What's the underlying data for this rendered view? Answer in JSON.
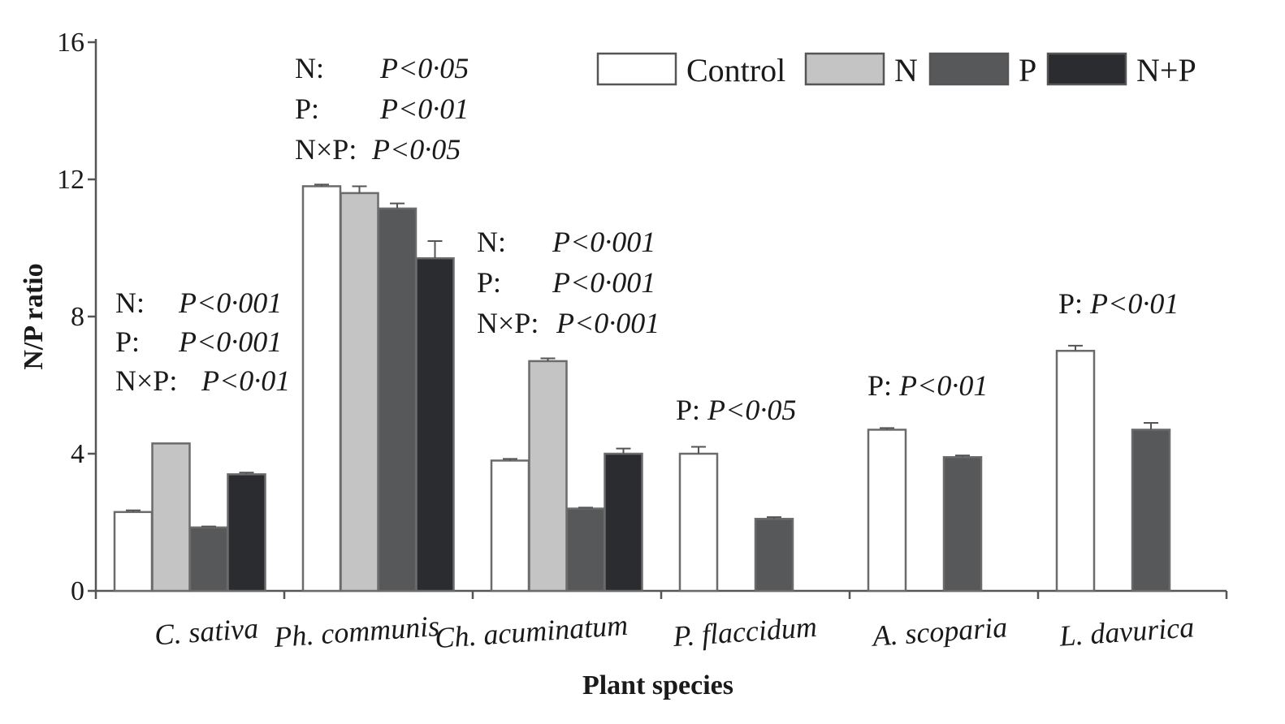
{
  "chart_data": {
    "type": "bar",
    "xlabel": "Plant species",
    "ylabel": "N/P ratio",
    "ylim": [
      0,
      16
    ],
    "yticks": [
      "0",
      "4",
      "8",
      "12",
      "16"
    ],
    "legend_position": "top-right",
    "categories": [
      "C. sativa",
      "Ph. communis",
      "Ch. acuminatum",
      "P. flaccidum",
      "A. scoparia",
      "L. davurica"
    ],
    "series": [
      {
        "name": "Control",
        "color": "#ffffff",
        "values": [
          2.3,
          11.8,
          3.8,
          4.0,
          4.7,
          7.0
        ],
        "errors": [
          0.05,
          0.05,
          0.05,
          0.2,
          0.05,
          0.15
        ]
      },
      {
        "name": "N",
        "color": "#c4c4c4",
        "values": [
          4.3,
          11.6,
          6.7,
          null,
          null,
          null
        ],
        "errors": [
          0.0,
          0.2,
          0.08,
          null,
          null,
          null
        ]
      },
      {
        "name": "P",
        "color": "#575859",
        "values": [
          1.85,
          11.15,
          2.4,
          2.1,
          3.9,
          4.7
        ],
        "errors": [
          0.03,
          0.15,
          0.03,
          0.05,
          0.05,
          0.2
        ]
      },
      {
        "name": "N+P",
        "color": "#2b2c30",
        "values": [
          3.4,
          9.7,
          4.0,
          null,
          null,
          null
        ],
        "errors": [
          0.05,
          0.5,
          0.15,
          null,
          null,
          null
        ]
      }
    ],
    "annotations": [
      {
        "category": "C. sativa",
        "lines": [
          [
            "N:",
            "P<0·001"
          ],
          [
            "P:",
            "P<0·001"
          ],
          [
            "N×P:",
            "P<0·01"
          ]
        ]
      },
      {
        "category": "Ph. communis",
        "lines": [
          [
            "N:",
            "P<0·05"
          ],
          [
            "P:",
            "P<0·01"
          ],
          [
            "N×P:",
            "P<0·05"
          ]
        ]
      },
      {
        "category": "Ch. acuminatum",
        "lines": [
          [
            "N:",
            "P<0·001"
          ],
          [
            "P:",
            "P<0·001"
          ],
          [
            "N×P:",
            "P<0·001"
          ]
        ]
      },
      {
        "category": "P. flaccidum",
        "lines": [
          [
            "P:",
            "P<0·05"
          ]
        ]
      },
      {
        "category": "A. scoparia",
        "lines": [
          [
            "P:",
            "P<0·01"
          ]
        ]
      },
      {
        "category": "L. davurica",
        "lines": [
          [
            "P:",
            "P<0·01"
          ]
        ]
      }
    ]
  }
}
